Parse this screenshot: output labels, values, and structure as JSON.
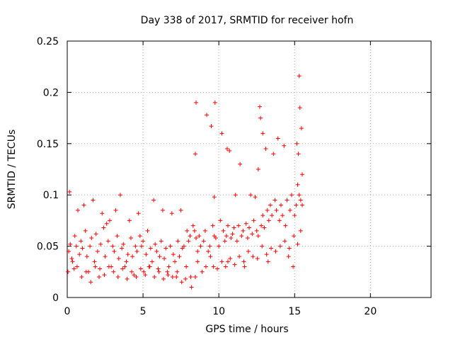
{
  "chart_data": {
    "type": "scatter",
    "title": "Day 338 of 2017, SRMTID for receiver hofn",
    "xlabel": "GPS time / hours",
    "ylabel": "SRMTID / TECUs",
    "xlim": [
      0,
      24
    ],
    "ylim": [
      0,
      0.25
    ],
    "xticks": [
      0,
      5,
      10,
      15,
      20
    ],
    "yticks": [
      0,
      0.05,
      0.1,
      0.15,
      0.2,
      0.25
    ],
    "x_tick_labels": [
      "0",
      "5",
      "10",
      "15",
      "20"
    ],
    "y_tick_labels": [
      "0",
      "0.05",
      "0.1",
      "0.15",
      "0.2",
      "0.25"
    ],
    "grid": true,
    "marker": "plus",
    "series_color": "#ff0000",
    "series": [
      {
        "name": "SRMTID",
        "x": [
          0.1,
          0.2,
          0.3,
          0.5,
          0.6,
          0.8,
          0.9,
          1.0,
          1.2,
          1.3,
          1.5,
          1.6,
          1.8,
          1.9,
          2.0,
          2.2,
          2.4,
          2.5,
          2.7,
          2.8,
          3.0,
          3.1,
          3.3,
          3.4,
          3.6,
          3.7,
          3.9,
          4.0,
          4.2,
          4.3,
          4.5,
          4.6,
          4.8,
          4.9,
          5.0,
          5.2,
          5.3,
          5.5,
          5.6,
          5.8,
          5.9,
          6.1,
          6.2,
          6.4,
          6.5,
          6.7,
          6.8,
          7.0,
          7.1,
          7.3,
          7.4,
          7.6,
          7.7,
          7.9,
          8.0,
          8.1,
          8.3,
          8.4,
          8.5,
          8.6,
          8.7,
          8.8,
          9.0,
          9.1,
          9.3,
          9.4,
          9.6,
          9.7,
          9.8,
          10.0,
          10.1,
          10.3,
          10.4,
          10.5,
          10.6,
          10.8,
          10.9,
          11.0,
          11.2,
          11.3,
          11.5,
          11.6,
          11.8,
          11.9,
          12.0,
          12.2,
          12.3,
          12.5,
          12.6,
          12.8,
          12.9,
          13.0,
          13.2,
          13.3,
          13.4,
          13.5,
          13.7,
          13.8,
          14.0,
          14.1,
          14.2,
          14.4,
          14.5,
          14.7,
          14.8,
          15.0,
          15.1,
          15.2,
          15.3,
          15.4,
          15.5,
          15.5,
          0.15,
          0.45,
          0.7,
          1.1,
          1.4,
          1.7,
          2.1,
          2.3,
          2.6,
          2.9,
          3.2,
          3.5,
          3.8,
          4.1,
          4.4,
          4.7,
          5.05,
          5.4,
          5.7,
          6.0,
          6.3,
          6.6,
          6.9,
          7.2,
          7.5,
          7.8,
          8.2,
          8.45,
          8.45,
          8.5,
          9.2,
          9.5,
          9.65,
          9.7,
          9.75,
          10.2,
          10.55,
          10.6,
          10.7,
          11.1,
          11.4,
          11.7,
          12.1,
          12.4,
          12.6,
          12.7,
          12.75,
          12.9,
          13.1,
          13.25,
          13.6,
          13.9,
          14.3,
          14.6,
          14.9,
          15.15,
          15.25,
          15.35,
          15.45,
          15.3,
          0.05,
          0.35,
          0.65,
          0.95,
          1.25,
          1.55,
          1.85,
          2.15,
          2.45,
          2.75,
          3.05,
          3.35,
          3.65,
          3.95,
          4.25,
          4.55,
          4.85,
          5.15,
          5.45,
          5.75,
          6.05,
          6.35,
          6.65,
          6.95,
          7.25,
          7.55,
          7.85,
          8.15,
          8.6,
          8.9,
          9.15,
          9.45,
          9.9,
          10.2,
          10.45,
          10.75,
          11.05,
          11.35,
          11.65,
          11.95,
          12.25,
          12.55,
          12.85,
          13.15,
          13.45,
          13.75,
          14.05,
          14.35,
          14.65,
          14.95,
          15.2,
          15.4
        ],
        "y": [
          0.045,
          0.052,
          0.038,
          0.06,
          0.05,
          0.042,
          0.055,
          0.048,
          0.065,
          0.04,
          0.05,
          0.058,
          0.035,
          0.062,
          0.045,
          0.052,
          0.068,
          0.04,
          0.055,
          0.075,
          0.05,
          0.045,
          0.06,
          0.038,
          0.048,
          0.052,
          0.035,
          0.042,
          0.058,
          0.04,
          0.05,
          0.045,
          0.06,
          0.05,
          0.055,
          0.042,
          0.065,
          0.048,
          0.035,
          0.052,
          0.045,
          0.04,
          0.055,
          0.038,
          0.048,
          0.03,
          0.05,
          0.042,
          0.035,
          0.055,
          0.04,
          0.048,
          0.05,
          0.065,
          0.055,
          0.06,
          0.07,
          0.065,
          0.058,
          0.045,
          0.06,
          0.05,
          0.055,
          0.065,
          0.045,
          0.05,
          0.07,
          0.06,
          0.058,
          0.05,
          0.075,
          0.065,
          0.055,
          0.06,
          0.07,
          0.058,
          0.062,
          0.068,
          0.055,
          0.07,
          0.06,
          0.065,
          0.072,
          0.058,
          0.068,
          0.062,
          0.075,
          0.065,
          0.06,
          0.07,
          0.08,
          0.068,
          0.085,
          0.075,
          0.09,
          0.08,
          0.095,
          0.085,
          0.075,
          0.09,
          0.08,
          0.07,
          0.095,
          0.085,
          0.1,
          0.08,
          0.09,
          0.11,
          0.1,
          0.095,
          0.12,
          0.09,
          0.103,
          0.028,
          0.085,
          0.09,
          0.025,
          0.095,
          0.02,
          0.082,
          0.072,
          0.03,
          0.085,
          0.1,
          0.03,
          0.075,
          0.022,
          0.082,
          0.025,
          0.03,
          0.095,
          0.028,
          0.085,
          0.025,
          0.082,
          0.02,
          0.085,
          0.018,
          0.01,
          0.02,
          0.14,
          0.19,
          0.178,
          0.167,
          0.03,
          0.098,
          0.19,
          0.16,
          0.145,
          0.035,
          0.143,
          0.1,
          0.13,
          0.03,
          0.1,
          0.098,
          0.125,
          0.186,
          0.175,
          0.16,
          0.145,
          0.035,
          0.14,
          0.155,
          0.148,
          0.04,
          0.03,
          0.15,
          0.14,
          0.185,
          0.165,
          0.216,
          0.025,
          0.035,
          0.03,
          0.02,
          0.025,
          0.015,
          0.03,
          0.028,
          0.022,
          0.03,
          0.025,
          0.02,
          0.028,
          0.018,
          0.025,
          0.02,
          0.028,
          0.022,
          0.03,
          0.02,
          0.025,
          0.018,
          0.022,
          0.02,
          0.025,
          0.015,
          0.03,
          0.02,
          0.035,
          0.025,
          0.03,
          0.04,
          0.028,
          0.035,
          0.03,
          0.038,
          0.032,
          0.04,
          0.035,
          0.045,
          0.04,
          0.038,
          0.05,
          0.042,
          0.048,
          0.045,
          0.05,
          0.055,
          0.048,
          0.06,
          0.052,
          0.065
        ]
      }
    ]
  }
}
